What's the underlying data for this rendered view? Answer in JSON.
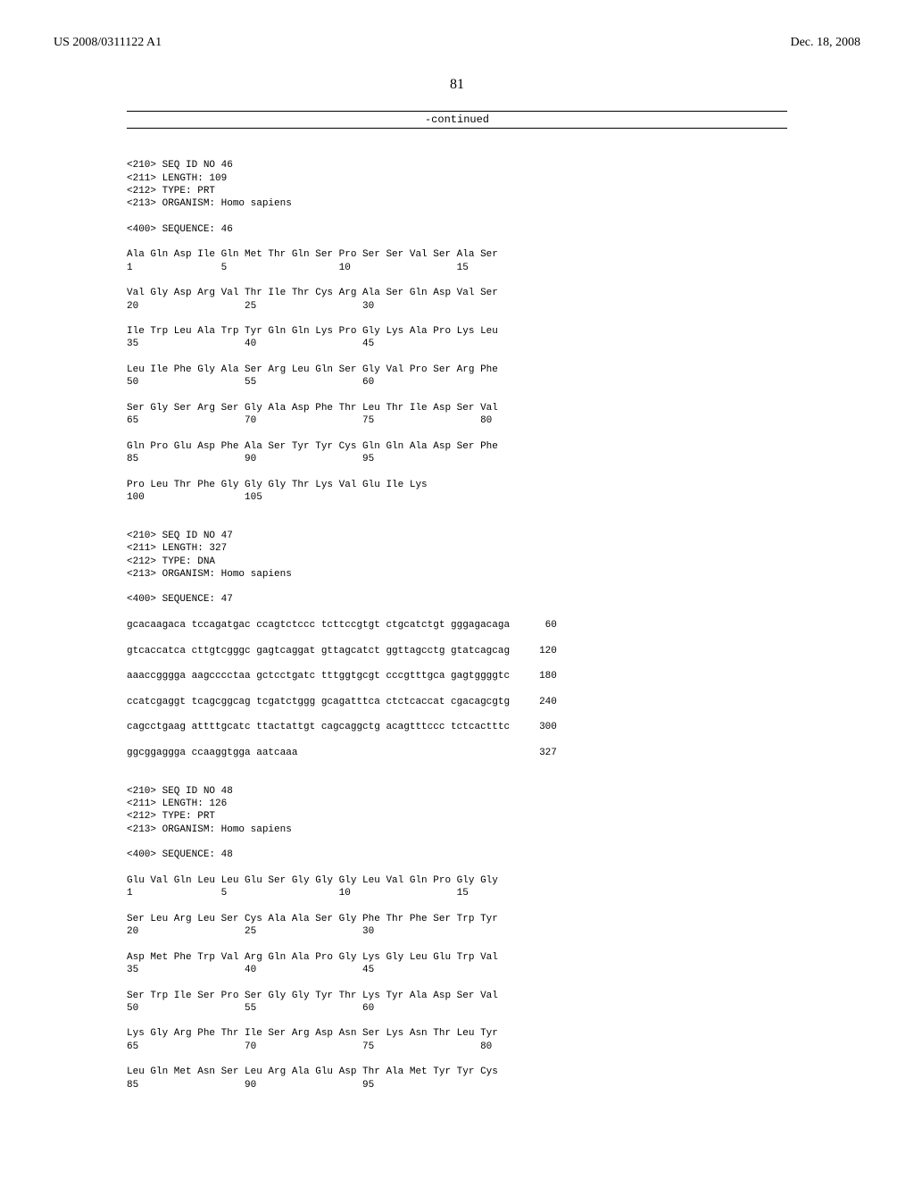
{
  "header": {
    "publication_number": "US 2008/0311122 A1",
    "publication_date": "Dec. 18, 2008"
  },
  "page_number": "81",
  "continued_label": "-continued",
  "sequence_text": "\n<210> SEQ ID NO 46\n<211> LENGTH: 109\n<212> TYPE: PRT\n<213> ORGANISM: Homo sapiens\n\n<400> SEQUENCE: 46\n\nAla Gln Asp Ile Gln Met Thr Gln Ser Pro Ser Ser Val Ser Ala Ser\n1               5                   10                  15\n\nVal Gly Asp Arg Val Thr Ile Thr Cys Arg Ala Ser Gln Asp Val Ser\n20                  25                  30\n\nIle Trp Leu Ala Trp Tyr Gln Gln Lys Pro Gly Lys Ala Pro Lys Leu\n35                  40                  45\n\nLeu Ile Phe Gly Ala Ser Arg Leu Gln Ser Gly Val Pro Ser Arg Phe\n50                  55                  60\n\nSer Gly Ser Arg Ser Gly Ala Asp Phe Thr Leu Thr Ile Asp Ser Val\n65                  70                  75                  80\n\nGln Pro Glu Asp Phe Ala Ser Tyr Tyr Cys Gln Gln Ala Asp Ser Phe\n85                  90                  95\n\nPro Leu Thr Phe Gly Gly Gly Thr Lys Val Glu Ile Lys\n100                 105\n\n\n<210> SEQ ID NO 47\n<211> LENGTH: 327\n<212> TYPE: DNA\n<213> ORGANISM: Homo sapiens\n\n<400> SEQUENCE: 47\n\ngcacaagaca tccagatgac ccagtctccc tcttccgtgt ctgcatctgt gggagacaga      60\n\ngtcaccatca cttgtcgggc gagtcaggat gttagcatct ggttagcctg gtatcagcag     120\n\naaaccgggga aagcccctaa gctcctgatc tttggtgcgt cccgtttgca gagtggggtc     180\n\nccatcgaggt tcagcggcag tcgatctggg gcagatttca ctctcaccat cgacagcgtg     240\n\ncagcctgaag attttgcatc ttactattgt cagcaggctg acagtttccc tctcactttc     300\n\nggcggaggga ccaaggtgga aatcaaa                                         327\n\n\n<210> SEQ ID NO 48\n<211> LENGTH: 126\n<212> TYPE: PRT\n<213> ORGANISM: Homo sapiens\n\n<400> SEQUENCE: 48\n\nGlu Val Gln Leu Leu Glu Ser Gly Gly Gly Leu Val Gln Pro Gly Gly\n1               5                   10                  15\n\nSer Leu Arg Leu Ser Cys Ala Ala Ser Gly Phe Thr Phe Ser Trp Tyr\n20                  25                  30\n\nAsp Met Phe Trp Val Arg Gln Ala Pro Gly Lys Gly Leu Glu Trp Val\n35                  40                  45\n\nSer Trp Ile Ser Pro Ser Gly Gly Tyr Thr Lys Tyr Ala Asp Ser Val\n50                  55                  60\n\nLys Gly Arg Phe Thr Ile Ser Arg Asp Asn Ser Lys Asn Thr Leu Tyr\n65                  70                  75                  80\n\nLeu Gln Met Asn Ser Leu Arg Ala Glu Asp Thr Ala Met Tyr Tyr Cys\n85                  90                  95"
}
